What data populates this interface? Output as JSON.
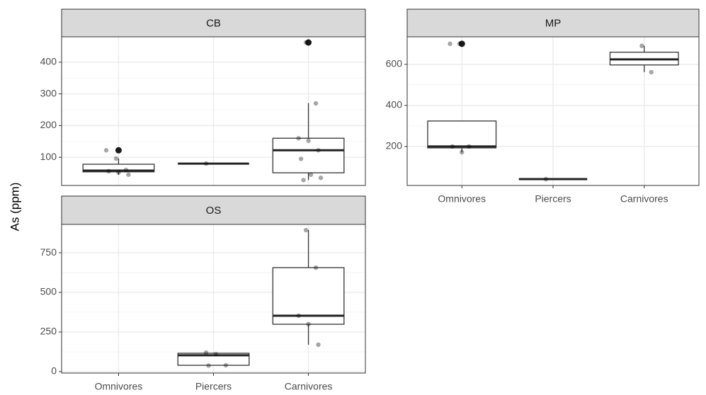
{
  "y_label": "As (ppm)",
  "categories": [
    "Omnivores",
    "Piercers",
    "Carnivores"
  ],
  "chart_data": [
    {
      "type": "box",
      "title": "CB",
      "ylim": [
        11,
        480
      ],
      "yticks": [
        100,
        200,
        300,
        400
      ],
      "grid": true,
      "boxes": [
        {
          "low": 45,
          "q1": 54,
          "median": 58,
          "q3": 78,
          "high": 96
        },
        {
          "low": 80,
          "q1": 80,
          "median": 80,
          "q3": 80,
          "high": 80
        },
        {
          "low": 28,
          "q1": 51,
          "median": 122,
          "q3": 160,
          "high": 271
        }
      ],
      "outliers": [
        [
          122
        ],
        [],
        [
          462
        ]
      ],
      "points": [
        [
          122,
          96,
          60,
          56,
          52,
          45
        ],
        [
          80
        ],
        [
          462,
          270,
          160,
          152,
          122,
          95,
          45,
          35,
          28
        ]
      ]
    },
    {
      "type": "box",
      "title": "MP",
      "ylim": [
        10,
        734
      ],
      "yticks": [
        200,
        400,
        600
      ],
      "grid": true,
      "boxes": [
        {
          "low": 172,
          "q1": 193,
          "median": 200,
          "q3": 324,
          "high": 324
        },
        {
          "low": 41,
          "q1": 41,
          "median": 41,
          "q3": 41,
          "high": 41
        },
        {
          "low": 562,
          "q1": 597,
          "median": 624,
          "q3": 659,
          "high": 690
        }
      ],
      "outliers": [
        [
          700
        ],
        [],
        []
      ],
      "points": [
        [
          700,
          700,
          200,
          200,
          172
        ],
        [
          41
        ],
        [
          690,
          562
        ]
      ]
    },
    {
      "type": "box",
      "title": "OS",
      "ylim": [
        -9,
        929
      ],
      "yticks": [
        0,
        250,
        500,
        750
      ],
      "grid": true,
      "boxes": [
        null,
        {
          "low": 38,
          "q1": 40,
          "median": 103,
          "q3": 116,
          "high": 120
        },
        {
          "low": 170,
          "q1": 299,
          "median": 353,
          "q3": 656,
          "high": 893
        }
      ],
      "outliers": [
        [],
        [],
        []
      ],
      "points": [
        [],
        [
          120,
          110,
          40,
          38
        ],
        [
          893,
          656,
          353,
          300,
          170
        ]
      ]
    }
  ]
}
